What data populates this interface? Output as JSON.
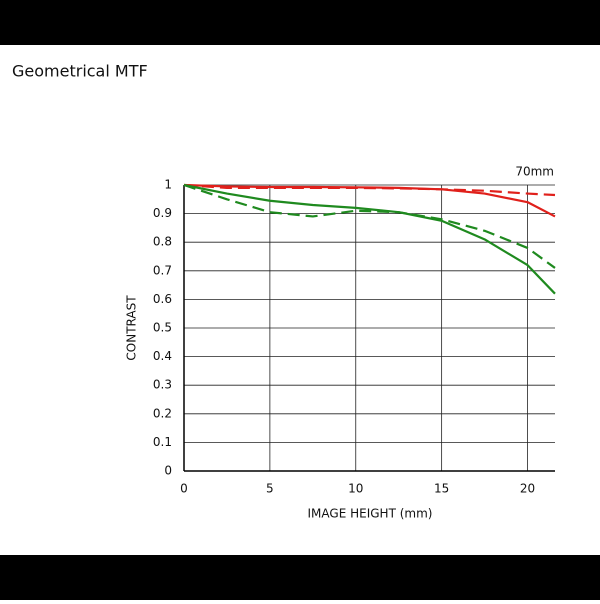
{
  "chart_data": {
    "type": "line",
    "title": "Geometrical MTF",
    "annotation": "70mm",
    "x_label": "IMAGE HEIGHT (mm)",
    "y_label": "CONTRAST",
    "x": [
      0,
      2.5,
      5,
      7.5,
      10,
      12.5,
      15,
      17.5,
      20,
      21.6
    ],
    "series": [
      {
        "color": "#e0201b",
        "dash": false,
        "values": [
          1,
          0.995,
          0.993,
          0.993,
          0.992,
          0.99,
          0.985,
          0.97,
          0.94,
          0.89
        ]
      },
      {
        "color": "#e0201b",
        "dash": true,
        "values": [
          1,
          0.99,
          0.99,
          0.99,
          0.99,
          0.988,
          0.985,
          0.98,
          0.97,
          0.965
        ]
      },
      {
        "color": "#1f8a1f",
        "dash": false,
        "values": [
          1,
          0.97,
          0.945,
          0.93,
          0.92,
          0.905,
          0.875,
          0.81,
          0.72,
          0.62
        ]
      },
      {
        "color": "#1f8a1f",
        "dash": true,
        "values": [
          1,
          0.95,
          0.905,
          0.89,
          0.91,
          0.905,
          0.88,
          0.84,
          0.78,
          0.71
        ]
      }
    ],
    "xlim": [
      0,
      21.6
    ],
    "ylim": [
      0,
      1
    ],
    "xticks": [
      0,
      5,
      10,
      15,
      20
    ],
    "yticks": [
      0,
      0.1,
      0.2,
      0.3,
      0.4,
      0.5,
      0.6,
      0.7,
      0.8,
      0.9,
      1
    ],
    "grid": true
  }
}
